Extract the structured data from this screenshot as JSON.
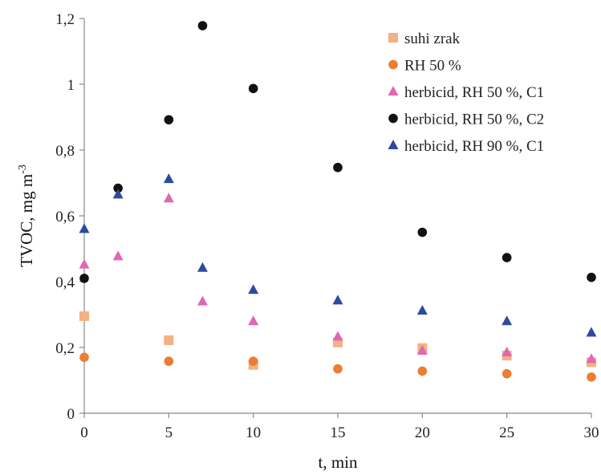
{
  "chart_data": {
    "type": "scatter",
    "xlabel": "t, min",
    "ylabel_main": "TVOC, mg m",
    "ylabel_sup": "-3",
    "xlim": [
      0,
      30
    ],
    "ylim": [
      0,
      1.2
    ],
    "x_ticks": [
      0,
      5,
      10,
      15,
      20,
      25,
      30
    ],
    "x_tick_labels": [
      "0",
      "5",
      "10",
      "15",
      "20",
      "25",
      "30"
    ],
    "y_ticks": [
      0,
      0.2,
      0.4,
      0.6,
      0.8,
      1.0,
      1.2
    ],
    "y_tick_labels": [
      "0",
      "0,2",
      "0,4",
      "0,6",
      "0,8",
      "1",
      "1,2"
    ],
    "grid": false,
    "legend_position": "top-right",
    "series": [
      {
        "name": "suhi zrak",
        "marker": "square",
        "color": "#f4b183",
        "points": [
          [
            0,
            0.295
          ],
          [
            5,
            0.222
          ],
          [
            10,
            0.147
          ],
          [
            15,
            0.215
          ],
          [
            20,
            0.198
          ],
          [
            25,
            0.175
          ],
          [
            30,
            0.155
          ]
        ]
      },
      {
        "name": "RH 50 %",
        "marker": "circle",
        "color": "#ed7d31",
        "points": [
          [
            0,
            0.17
          ],
          [
            5,
            0.158
          ],
          [
            10,
            0.158
          ],
          [
            15,
            0.135
          ],
          [
            20,
            0.128
          ],
          [
            25,
            0.12
          ],
          [
            30,
            0.11
          ]
        ]
      },
      {
        "name": "herbicid, RH 50 %, C1",
        "marker": "triangle",
        "color": "#e066b6",
        "points": [
          [
            0,
            0.452
          ],
          [
            2,
            0.477
          ],
          [
            5,
            0.653
          ],
          [
            7,
            0.34
          ],
          [
            10,
            0.28
          ],
          [
            15,
            0.233
          ],
          [
            20,
            0.19
          ],
          [
            25,
            0.185
          ],
          [
            30,
            0.165
          ]
        ]
      },
      {
        "name": "herbicid, RH 50 %, C2",
        "marker": "circle",
        "color": "#111111",
        "points": [
          [
            0,
            0.41
          ],
          [
            2,
            0.684
          ],
          [
            5,
            0.892
          ],
          [
            7,
            1.178
          ],
          [
            10,
            0.987
          ],
          [
            15,
            0.747
          ],
          [
            20,
            0.55
          ],
          [
            25,
            0.473
          ],
          [
            30,
            0.413
          ]
        ]
      },
      {
        "name": "herbicid, RH 90 %, C1",
        "marker": "triangle",
        "color": "#2e4a9e",
        "points": [
          [
            0,
            0.56
          ],
          [
            2,
            0.665
          ],
          [
            5,
            0.712
          ],
          [
            7,
            0.442
          ],
          [
            10,
            0.375
          ],
          [
            15,
            0.343
          ],
          [
            20,
            0.312
          ],
          [
            25,
            0.28
          ],
          [
            30,
            0.245
          ]
        ]
      }
    ]
  }
}
